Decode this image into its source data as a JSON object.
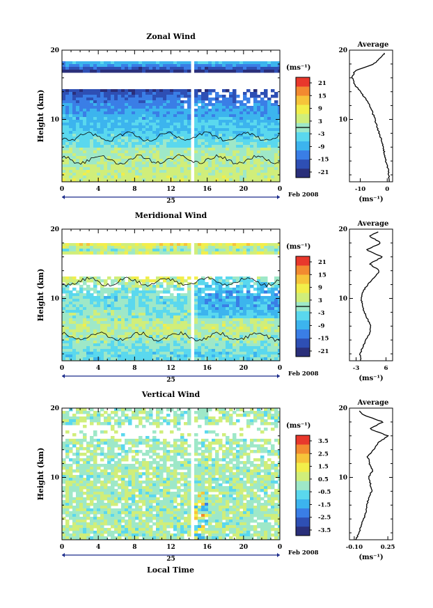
{
  "figure": {
    "date_label": "Feb 2008",
    "day_label": "25",
    "bottom_xlabel": "Local Time",
    "unit_label": "(ms⁻¹)",
    "profile_xunit": "(ms⁻¹)"
  },
  "chart_data": [
    {
      "type": "heatmap",
      "title": "Zonal Wind",
      "ylabel": "Height (km)",
      "xlabel": "Local Time",
      "xticks": [
        "0",
        "4",
        "8",
        "12",
        "16",
        "20",
        "0"
      ],
      "xlim": [
        0,
        24
      ],
      "yticks": [
        "10",
        "20"
      ],
      "ylim": [
        1,
        20
      ],
      "colorbar": {
        "label": "(ms⁻¹)",
        "ticks": [
          "21",
          "15",
          "9",
          "3",
          "-3",
          "-9",
          "-15",
          "-21"
        ],
        "range": [
          -24,
          24
        ]
      },
      "data_gap_local_time": [
        14.0,
        14.6
      ],
      "profile": {
        "title": "Average",
        "xticks": [
          "-10",
          "0"
        ],
        "xlim": [
          -14,
          2
        ],
        "yticks": [
          "10",
          "20"
        ],
        "height_km": [
          1,
          2,
          3,
          4,
          5,
          6,
          7,
          8,
          9,
          10,
          11,
          12,
          13,
          14,
          15,
          16,
          17,
          18,
          19,
          19.6
        ],
        "value": [
          1.0,
          0.5,
          0.2,
          -0.5,
          -1.0,
          -1.5,
          -2.0,
          -3.0,
          -3.8,
          -4.5,
          -5.5,
          -6.5,
          -8.0,
          -10.0,
          -12.0,
          -13.0,
          -12.0,
          -5.0,
          -2.0,
          -1.0
        ]
      }
    },
    {
      "type": "heatmap",
      "title": "Meridional Wind",
      "ylabel": "Height (km)",
      "xlabel": "Local Time",
      "xticks": [
        "0",
        "4",
        "8",
        "12",
        "16",
        "20",
        "0"
      ],
      "xlim": [
        0,
        24
      ],
      "yticks": [
        "10",
        "20"
      ],
      "ylim": [
        1,
        20
      ],
      "colorbar": {
        "label": "(ms⁻¹)",
        "ticks": [
          "21",
          "15",
          "9",
          "3",
          "-3",
          "-9",
          "-15",
          "-21"
        ],
        "range": [
          -24,
          24
        ]
      },
      "data_gap_local_time": [
        14.0,
        14.6
      ],
      "profile": {
        "title": "Average",
        "xticks": [
          "-3",
          "6"
        ],
        "xlim": [
          -5,
          8
        ],
        "yticks": [
          "10",
          "20"
        ],
        "height_km": [
          1,
          2,
          3,
          4,
          5,
          6,
          7,
          8,
          9,
          10,
          11,
          12,
          13,
          14,
          15,
          16,
          17,
          18,
          19,
          19.6
        ],
        "value": [
          -1.5,
          -1.8,
          -1.0,
          0.0,
          1.0,
          1.5,
          0.5,
          -0.5,
          -1.2,
          -1.5,
          -1.0,
          0.5,
          2.5,
          4.0,
          1.0,
          5.0,
          0.0,
          4.5,
          1.0,
          3.5
        ]
      }
    },
    {
      "type": "heatmap",
      "title": "Vertical Wind",
      "ylabel": "Height (km)",
      "xlabel": "Local Time",
      "xticks": [
        "0",
        "4",
        "8",
        "12",
        "16",
        "20",
        "0"
      ],
      "xlim": [
        0,
        24
      ],
      "yticks": [
        "10",
        "20"
      ],
      "ylim": [
        1,
        20
      ],
      "colorbar": {
        "label": "(ms⁻¹)",
        "ticks": [
          "3.5",
          "2.5",
          "1.5",
          "0.5",
          "-0.5",
          "-1.5",
          "-2.5",
          "-3.5"
        ],
        "range": [
          -4,
          4
        ]
      },
      "data_gap_local_time": [
        14.0,
        14.6
      ],
      "profile": {
        "title": "Average",
        "xticks": [
          "-0.10",
          "0.25"
        ],
        "xlim": [
          -0.15,
          0.3
        ],
        "yticks": [
          "10",
          "20"
        ],
        "height_km": [
          1,
          2,
          3,
          4,
          5,
          6,
          7,
          8,
          9,
          10,
          11,
          12,
          13,
          14,
          15,
          16,
          17,
          18,
          19,
          19.6
        ],
        "value": [
          -0.08,
          -0.05,
          -0.03,
          0.0,
          0.02,
          0.03,
          0.05,
          0.08,
          0.07,
          0.05,
          0.09,
          0.06,
          0.04,
          0.1,
          0.15,
          0.25,
          0.06,
          0.2,
          0.0,
          -0.05
        ]
      }
    }
  ]
}
